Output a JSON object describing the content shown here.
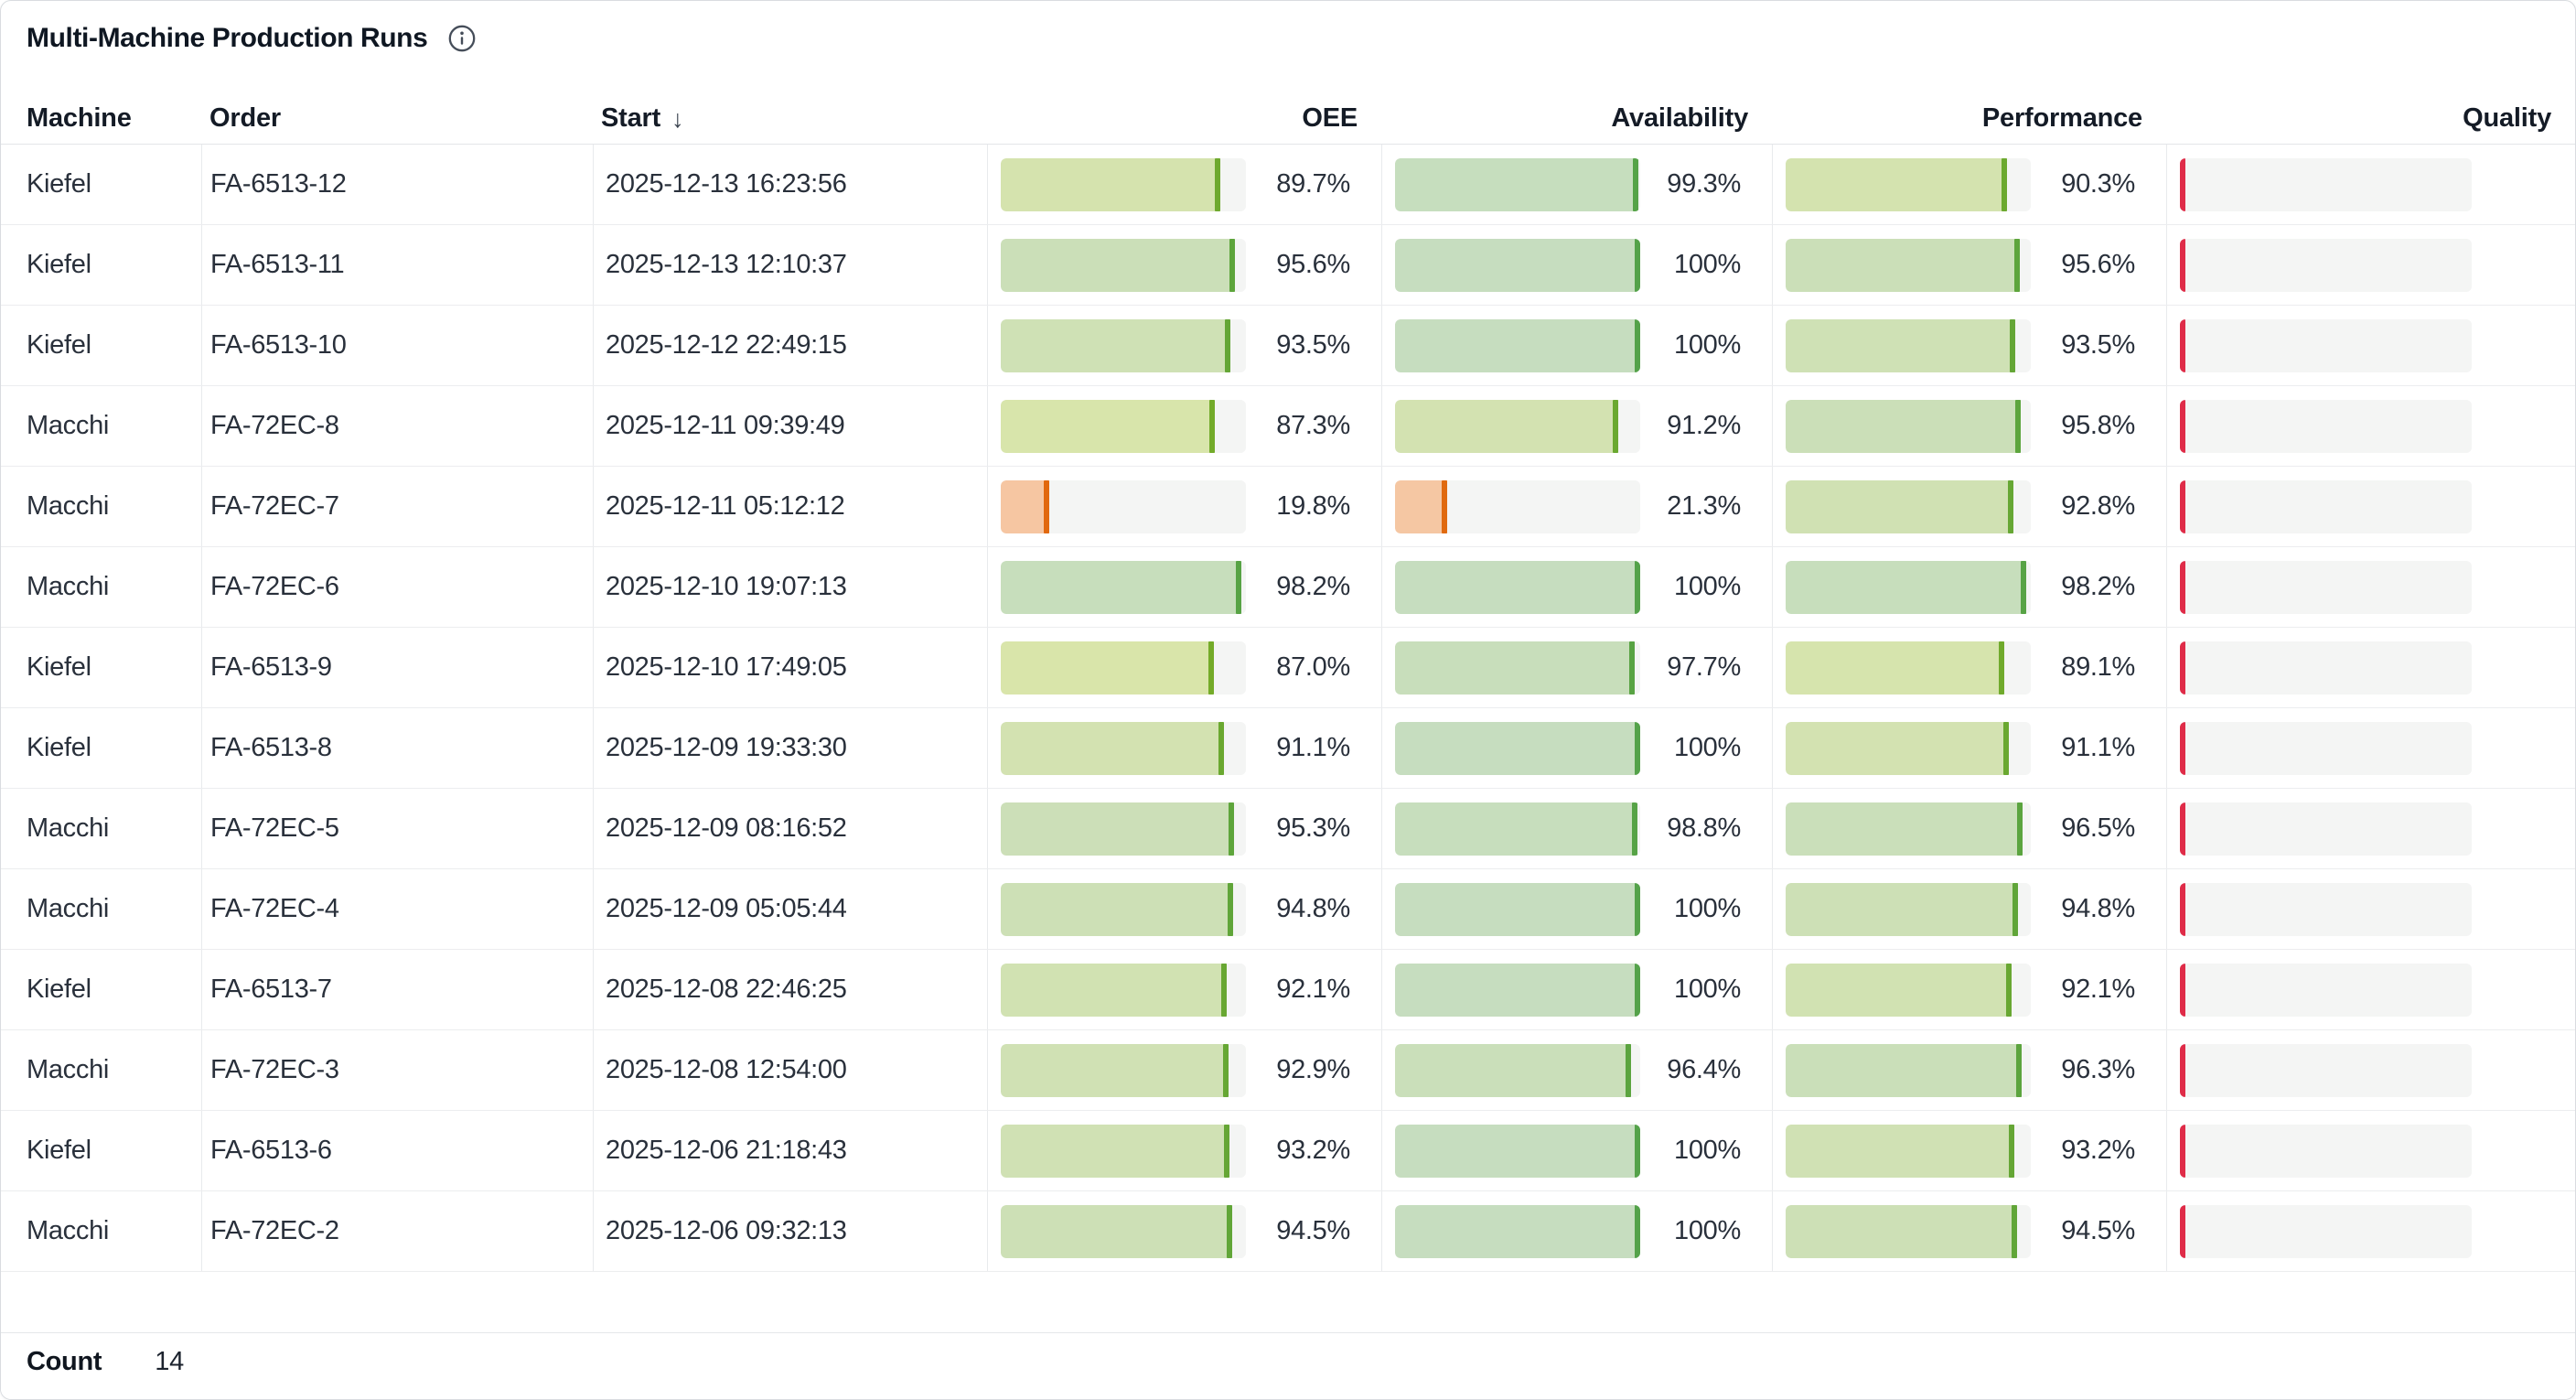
{
  "header": {
    "title": "Multi-Machine Production Runs"
  },
  "columns": [
    {
      "key": "machine",
      "label": "Machine"
    },
    {
      "key": "order",
      "label": "Order"
    },
    {
      "key": "start",
      "label": "Start"
    },
    {
      "key": "oee",
      "label": "OEE"
    },
    {
      "key": "availability",
      "label": "Availability"
    },
    {
      "key": "performance",
      "label": "Performance"
    },
    {
      "key": "quality",
      "label": "Quality"
    }
  ],
  "sort": {
    "column": "Start",
    "direction": "descending",
    "arrow": "↓"
  },
  "colors": {
    "bar_track": "#f4f5f4",
    "quality_marker_red": "#df2c48",
    "low_value_fill": "#f6c6a2",
    "low_value_marker": "#e1680e",
    "row_border": "#ecedef",
    "card_border": "#d9dce0"
  },
  "rows": [
    {
      "machine": "Kiefel",
      "order": "FA-6513-12",
      "start": "2025-12-13 16:23:56",
      "oee": {
        "label": "89.7%",
        "pct": 89.7,
        "fill": "#d5e3ae",
        "marker": "#6ea92e"
      },
      "availability": {
        "label": "99.3%",
        "pct": 99.3,
        "fill": "#c6debe",
        "marker": "#55a348"
      },
      "performance": {
        "label": "90.3%",
        "pct": 90.3,
        "fill": "#d4e3af",
        "marker": "#6ca92f"
      },
      "quality": {
        "label": "",
        "pct": 0,
        "fill": null,
        "marker": "#df2c48"
      }
    },
    {
      "machine": "Kiefel",
      "order": "FA-6513-11",
      "start": "2025-12-13 12:10:37",
      "oee": {
        "label": "95.6%",
        "pct": 95.6,
        "fill": "#cbdfb8",
        "marker": "#5da53c"
      },
      "availability": {
        "label": "100%",
        "pct": 100,
        "fill": "#c6ddbf",
        "marker": "#54a24a"
      },
      "performance": {
        "label": "95.6%",
        "pct": 95.6,
        "fill": "#cbdfb8",
        "marker": "#5da53c"
      },
      "quality": {
        "label": "",
        "pct": 0,
        "fill": null,
        "marker": "#df2c48"
      }
    },
    {
      "machine": "Kiefel",
      "order": "FA-6513-10",
      "start": "2025-12-12 22:49:15",
      "oee": {
        "label": "93.5%",
        "pct": 93.5,
        "fill": "#cfe1b5",
        "marker": "#64a636"
      },
      "availability": {
        "label": "100%",
        "pct": 100,
        "fill": "#c6ddbf",
        "marker": "#54a24a"
      },
      "performance": {
        "label": "93.5%",
        "pct": 93.5,
        "fill": "#cfe1b5",
        "marker": "#64a636"
      },
      "quality": {
        "label": "",
        "pct": 0,
        "fill": null,
        "marker": "#df2c48"
      }
    },
    {
      "machine": "Macchi",
      "order": "FA-72EC-8",
      "start": "2025-12-11 09:39:49",
      "oee": {
        "label": "87.3%",
        "pct": 87.3,
        "fill": "#d8e5ab",
        "marker": "#73ab2a"
      },
      "availability": {
        "label": "91.2%",
        "pct": 91.2,
        "fill": "#d3e2b1",
        "marker": "#6aa830"
      },
      "performance": {
        "label": "95.8%",
        "pct": 95.8,
        "fill": "#cbdfb8",
        "marker": "#5da53d"
      },
      "quality": {
        "label": "",
        "pct": 0,
        "fill": null,
        "marker": "#df2c48"
      }
    },
    {
      "machine": "Macchi",
      "order": "FA-72EC-7",
      "start": "2025-12-11 05:12:12",
      "oee": {
        "label": "19.8%",
        "pct": 19.8,
        "fill": "#f6c6a2",
        "marker": "#e1680e"
      },
      "availability": {
        "label": "21.3%",
        "pct": 21.3,
        "fill": "#f5c7a3",
        "marker": "#e06a10"
      },
      "performance": {
        "label": "92.8%",
        "pct": 92.8,
        "fill": "#d0e1b3",
        "marker": "#66a734"
      },
      "quality": {
        "label": "",
        "pct": 0,
        "fill": null,
        "marker": "#df2c48"
      }
    },
    {
      "machine": "Macchi",
      "order": "FA-72EC-6",
      "start": "2025-12-10 19:07:13",
      "oee": {
        "label": "98.2%",
        "pct": 98.2,
        "fill": "#c7debc",
        "marker": "#57a345"
      },
      "availability": {
        "label": "100%",
        "pct": 100,
        "fill": "#c6ddbf",
        "marker": "#54a24a"
      },
      "performance": {
        "label": "98.2%",
        "pct": 98.2,
        "fill": "#c7debc",
        "marker": "#57a345"
      },
      "quality": {
        "label": "",
        "pct": 0,
        "fill": null,
        "marker": "#df2c48"
      }
    },
    {
      "machine": "Kiefel",
      "order": "FA-6513-9",
      "start": "2025-12-10 17:49:05",
      "oee": {
        "label": "87.0%",
        "pct": 87.0,
        "fill": "#d9e5aa",
        "marker": "#74ab29"
      },
      "availability": {
        "label": "97.7%",
        "pct": 97.7,
        "fill": "#c8debb",
        "marker": "#58a343"
      },
      "performance": {
        "label": "89.1%",
        "pct": 89.1,
        "fill": "#d6e4ad",
        "marker": "#70aa2c"
      },
      "quality": {
        "label": "",
        "pct": 0,
        "fill": null,
        "marker": "#df2c48"
      }
    },
    {
      "machine": "Kiefel",
      "order": "FA-6513-8",
      "start": "2025-12-09 19:33:30",
      "oee": {
        "label": "91.1%",
        "pct": 91.1,
        "fill": "#d3e2b1",
        "marker": "#6aa830"
      },
      "availability": {
        "label": "100%",
        "pct": 100,
        "fill": "#c6ddbf",
        "marker": "#54a24a"
      },
      "performance": {
        "label": "91.1%",
        "pct": 91.1,
        "fill": "#d3e2b1",
        "marker": "#6aa830"
      },
      "quality": {
        "label": "",
        "pct": 0,
        "fill": null,
        "marker": "#df2c48"
      }
    },
    {
      "machine": "Macchi",
      "order": "FA-72EC-5",
      "start": "2025-12-09 08:16:52",
      "oee": {
        "label": "95.3%",
        "pct": 95.3,
        "fill": "#ccdfb8",
        "marker": "#5ea53b"
      },
      "availability": {
        "label": "98.8%",
        "pct": 98.8,
        "fill": "#c7debd",
        "marker": "#56a346"
      },
      "performance": {
        "label": "96.5%",
        "pct": 96.5,
        "fill": "#cadfba",
        "marker": "#5ba43f"
      },
      "quality": {
        "label": "",
        "pct": 0,
        "fill": null,
        "marker": "#df2c48"
      }
    },
    {
      "machine": "Macchi",
      "order": "FA-72EC-4",
      "start": "2025-12-09 05:05:44",
      "oee": {
        "label": "94.8%",
        "pct": 94.8,
        "fill": "#cde0b6",
        "marker": "#60a539"
      },
      "availability": {
        "label": "100%",
        "pct": 100,
        "fill": "#c6ddbf",
        "marker": "#54a24a"
      },
      "performance": {
        "label": "94.8%",
        "pct": 94.8,
        "fill": "#cde0b6",
        "marker": "#60a539"
      },
      "quality": {
        "label": "",
        "pct": 0,
        "fill": null,
        "marker": "#df2c48"
      }
    },
    {
      "machine": "Kiefel",
      "order": "FA-6513-7",
      "start": "2025-12-08 22:46:25",
      "oee": {
        "label": "92.1%",
        "pct": 92.1,
        "fill": "#d1e2b2",
        "marker": "#68a732"
      },
      "availability": {
        "label": "100%",
        "pct": 100,
        "fill": "#c6ddbf",
        "marker": "#54a24a"
      },
      "performance": {
        "label": "92.1%",
        "pct": 92.1,
        "fill": "#d1e2b2",
        "marker": "#68a732"
      },
      "quality": {
        "label": "",
        "pct": 0,
        "fill": null,
        "marker": "#df2c48"
      }
    },
    {
      "machine": "Macchi",
      "order": "FA-72EC-3",
      "start": "2025-12-08 12:54:00",
      "oee": {
        "label": "92.9%",
        "pct": 92.9,
        "fill": "#d0e1b4",
        "marker": "#66a734"
      },
      "availability": {
        "label": "96.4%",
        "pct": 96.4,
        "fill": "#cadfba",
        "marker": "#5ba43f"
      },
      "performance": {
        "label": "96.3%",
        "pct": 96.3,
        "fill": "#cadfb9",
        "marker": "#5ca43e"
      },
      "quality": {
        "label": "",
        "pct": 0,
        "fill": null,
        "marker": "#df2c48"
      }
    },
    {
      "machine": "Kiefel",
      "order": "FA-6513-6",
      "start": "2025-12-06 21:18:43",
      "oee": {
        "label": "93.2%",
        "pct": 93.2,
        "fill": "#d0e1b4",
        "marker": "#65a635"
      },
      "availability": {
        "label": "100%",
        "pct": 100,
        "fill": "#c6ddbf",
        "marker": "#54a24a"
      },
      "performance": {
        "label": "93.2%",
        "pct": 93.2,
        "fill": "#d0e1b4",
        "marker": "#65a635"
      },
      "quality": {
        "label": "",
        "pct": 0,
        "fill": null,
        "marker": "#df2c48"
      }
    },
    {
      "machine": "Macchi",
      "order": "FA-72EC-2",
      "start": "2025-12-06 09:32:13",
      "oee": {
        "label": "94.5%",
        "pct": 94.5,
        "fill": "#cde0b6",
        "marker": "#61a638"
      },
      "availability": {
        "label": "100%",
        "pct": 100,
        "fill": "#c6ddbf",
        "marker": "#54a24a"
      },
      "performance": {
        "label": "94.5%",
        "pct": 94.5,
        "fill": "#cde0b6",
        "marker": "#61a638"
      },
      "quality": {
        "label": "",
        "pct": 0,
        "fill": null,
        "marker": "#df2c48"
      }
    }
  ],
  "footer": {
    "count_label": "Count",
    "count_value": "14"
  }
}
